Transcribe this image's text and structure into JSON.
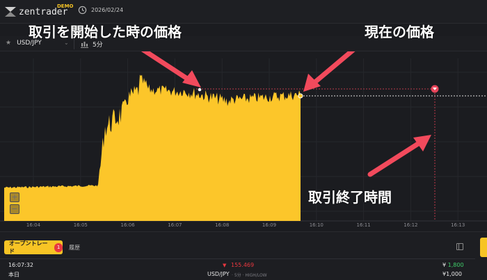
{
  "header": {
    "logo_text": "zentrader",
    "demo_badge": "DEMO",
    "date": "2026/02/24"
  },
  "toolbar": {
    "asset": "USD/JPY",
    "timeframe": "5分"
  },
  "chart": {
    "x_ticks": [
      "16:04",
      "16:05",
      "16:06",
      "16:07",
      "16:08",
      "16:09",
      "16:10",
      "16:11",
      "16:12",
      "16:13"
    ],
    "zoom_in": "+",
    "zoom_out": "−",
    "colors": {
      "area": "#fcc62a",
      "entry_line": "#b83a4a",
      "current_line": "#e0e0e0",
      "marker": "#e8455a"
    }
  },
  "annotations": {
    "entry_price": "取引を開始した時の価格",
    "current_price": "現在の価格",
    "end_time": "取引終了時間"
  },
  "bottom": {
    "tab_open": "オープントレード",
    "tab_open_count": "1",
    "tab_history": "履歴",
    "trade": {
      "time": "16:07:32",
      "day": "本日",
      "price": "155.469",
      "pair": "USD/JPY",
      "meta": "· 5分 · HIGH/LOW",
      "payout_currency": "¥",
      "payout": "1,800",
      "stake": "¥1,000"
    }
  }
}
